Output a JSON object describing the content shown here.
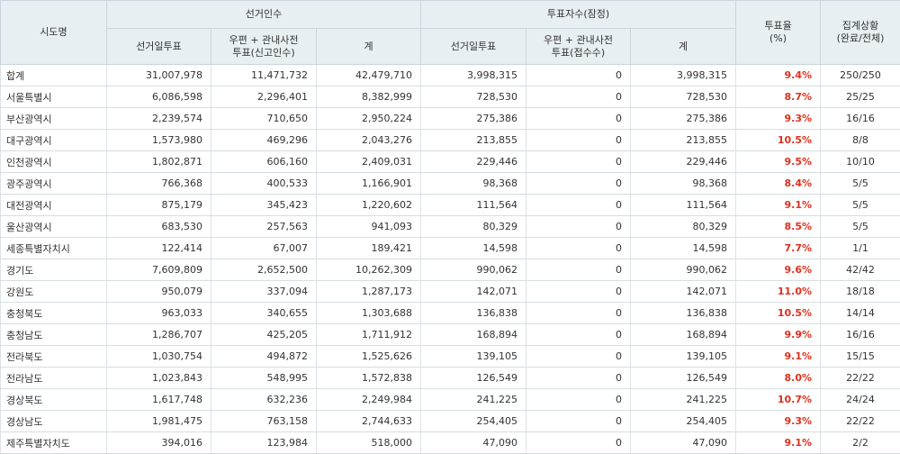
{
  "headers": {
    "region": "시도명",
    "electorate": "선거인수",
    "votes": "투표자수(잠정)",
    "rate": "투표율\n(%)",
    "status": "집계상황\n(완료/전체)",
    "sub": {
      "elec_day": "선거일투표",
      "elec_post": "우편 + 관내사전\n투표(신고인수)",
      "elec_total": "계",
      "vote_day": "선거일투표",
      "vote_post": "우편 + 관내사전\n투표(접수수)",
      "vote_total": "계"
    }
  },
  "rows": [
    {
      "name": "합계",
      "e_day": "31,007,978",
      "e_post": "11,471,732",
      "e_total": "42,479,710",
      "v_day": "3,998,315",
      "v_post": "0",
      "v_total": "3,998,315",
      "rate": "9.4%",
      "status": "250/250"
    },
    {
      "name": "서울특별시",
      "e_day": "6,086,598",
      "e_post": "2,296,401",
      "e_total": "8,382,999",
      "v_day": "728,530",
      "v_post": "0",
      "v_total": "728,530",
      "rate": "8.7%",
      "status": "25/25"
    },
    {
      "name": "부산광역시",
      "e_day": "2,239,574",
      "e_post": "710,650",
      "e_total": "2,950,224",
      "v_day": "275,386",
      "v_post": "0",
      "v_total": "275,386",
      "rate": "9.3%",
      "status": "16/16"
    },
    {
      "name": "대구광역시",
      "e_day": "1,573,980",
      "e_post": "469,296",
      "e_total": "2,043,276",
      "v_day": "213,855",
      "v_post": "0",
      "v_total": "213,855",
      "rate": "10.5%",
      "status": "8/8"
    },
    {
      "name": "인천광역시",
      "e_day": "1,802,871",
      "e_post": "606,160",
      "e_total": "2,409,031",
      "v_day": "229,446",
      "v_post": "0",
      "v_total": "229,446",
      "rate": "9.5%",
      "status": "10/10"
    },
    {
      "name": "광주광역시",
      "e_day": "766,368",
      "e_post": "400,533",
      "e_total": "1,166,901",
      "v_day": "98,368",
      "v_post": "0",
      "v_total": "98,368",
      "rate": "8.4%",
      "status": "5/5"
    },
    {
      "name": "대전광역시",
      "e_day": "875,179",
      "e_post": "345,423",
      "e_total": "1,220,602",
      "v_day": "111,564",
      "v_post": "0",
      "v_total": "111,564",
      "rate": "9.1%",
      "status": "5/5"
    },
    {
      "name": "울산광역시",
      "e_day": "683,530",
      "e_post": "257,563",
      "e_total": "941,093",
      "v_day": "80,329",
      "v_post": "0",
      "v_total": "80,329",
      "rate": "8.5%",
      "status": "5/5"
    },
    {
      "name": "세종특별자치시",
      "e_day": "122,414",
      "e_post": "67,007",
      "e_total": "189,421",
      "v_day": "14,598",
      "v_post": "0",
      "v_total": "14,598",
      "rate": "7.7%",
      "status": "1/1"
    },
    {
      "name": "경기도",
      "e_day": "7,609,809",
      "e_post": "2,652,500",
      "e_total": "10,262,309",
      "v_day": "990,062",
      "v_post": "0",
      "v_total": "990,062",
      "rate": "9.6%",
      "status": "42/42"
    },
    {
      "name": "강원도",
      "e_day": "950,079",
      "e_post": "337,094",
      "e_total": "1,287,173",
      "v_day": "142,071",
      "v_post": "0",
      "v_total": "142,071",
      "rate": "11.0%",
      "status": "18/18"
    },
    {
      "name": "충청북도",
      "e_day": "963,033",
      "e_post": "340,655",
      "e_total": "1,303,688",
      "v_day": "136,838",
      "v_post": "0",
      "v_total": "136,838",
      "rate": "10.5%",
      "status": "14/14"
    },
    {
      "name": "충청남도",
      "e_day": "1,286,707",
      "e_post": "425,205",
      "e_total": "1,711,912",
      "v_day": "168,894",
      "v_post": "0",
      "v_total": "168,894",
      "rate": "9.9%",
      "status": "16/16"
    },
    {
      "name": "전라북도",
      "e_day": "1,030,754",
      "e_post": "494,872",
      "e_total": "1,525,626",
      "v_day": "139,105",
      "v_post": "0",
      "v_total": "139,105",
      "rate": "9.1%",
      "status": "15/15"
    },
    {
      "name": "전라남도",
      "e_day": "1,023,843",
      "e_post": "548,995",
      "e_total": "1,572,838",
      "v_day": "126,549",
      "v_post": "0",
      "v_total": "126,549",
      "rate": "8.0%",
      "status": "22/22"
    },
    {
      "name": "경상북도",
      "e_day": "1,617,748",
      "e_post": "632,236",
      "e_total": "2,249,984",
      "v_day": "241,225",
      "v_post": "0",
      "v_total": "241,225",
      "rate": "10.7%",
      "status": "24/24"
    },
    {
      "name": "경상남도",
      "e_day": "1,981,475",
      "e_post": "763,158",
      "e_total": "2,744,633",
      "v_day": "254,405",
      "v_post": "0",
      "v_total": "254,405",
      "rate": "9.3%",
      "status": "22/22"
    },
    {
      "name": "제주특별자치도",
      "e_day": "394,016",
      "e_post": "123,984",
      "e_total": "518,000",
      "v_day": "47,090",
      "v_post": "0",
      "v_total": "47,090",
      "rate": "9.1%",
      "status": "2/2"
    }
  ],
  "colors": {
    "rate_highlight": "#e0301e",
    "header_bg": "#e8eff3"
  }
}
